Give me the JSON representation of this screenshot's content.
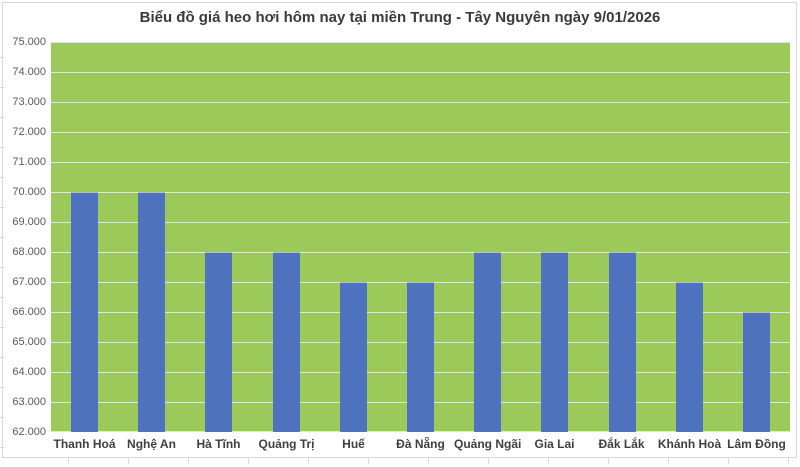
{
  "chart_data": {
    "type": "bar",
    "title": "Biểu đồ giá heo hơi hôm nay tại miền Trung - Tây Nguyên ngày 9/01/2026",
    "categories": [
      "Thanh Hoá",
      "Nghệ An",
      "Hà Tĩnh",
      "Quảng Trị",
      "Huế",
      "Đà Nẵng",
      "Quảng Ngãi",
      "Gia Lai",
      "Đắk Lắk",
      "Khánh Hoà",
      "Lâm Đồng"
    ],
    "values": [
      70000,
      70000,
      68000,
      68000,
      67000,
      67000,
      68000,
      68000,
      68000,
      67000,
      66000
    ],
    "xlabel": "",
    "ylabel": "",
    "ylim": [
      62000,
      75000
    ],
    "ytick_step": 1000,
    "ytick_labels": [
      "75.000",
      "74.000",
      "73.000",
      "72.000",
      "71.000",
      "70.000",
      "69.000",
      "68.000",
      "67.000",
      "66.000",
      "65.000",
      "64.000",
      "63.000",
      "62.000"
    ],
    "grid": true,
    "legend": null,
    "colors": {
      "bar": "#4E72BD",
      "bar_top_edge": "rgba(255,255,255,0.55)",
      "plot_background": "#9BCA5B",
      "gridline": "rgba(255,255,255,0.65)",
      "chart_border": "#D9D9D9",
      "title_text": "#3A3A3A",
      "axis_tick_text": "#595959",
      "category_text": "#3F3F3F",
      "page_background": "#FFFFFF"
    }
  }
}
